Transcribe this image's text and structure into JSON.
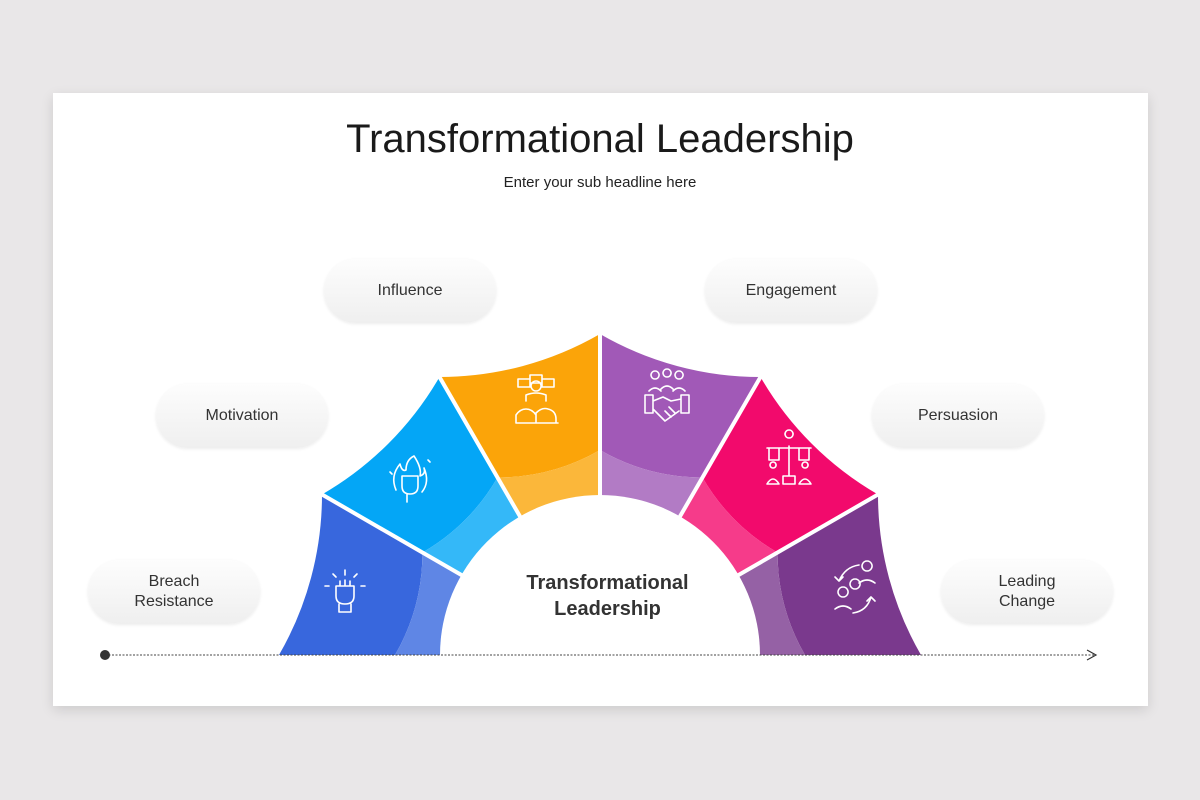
{
  "header": {
    "title": "Transformational Leadership",
    "subtitle": "Enter your sub headline here"
  },
  "center": {
    "line1": "Transformational",
    "line2": "Leadership"
  },
  "segments": [
    {
      "label": "Breach Resistance",
      "color": "#3867dd",
      "light": "#5f86e5",
      "icon": "raised-fist-icon"
    },
    {
      "label": "Motivation",
      "color": "#04a6f6",
      "light": "#34b8f8",
      "icon": "fist-flame-icon"
    },
    {
      "label": "Influence",
      "color": "#fba409",
      "light": "#fbb73a",
      "icon": "team-hearts-icon"
    },
    {
      "label": "Engagement",
      "color": "#a159b7",
      "light": "#b27bc5",
      "icon": "handshake-team-icon"
    },
    {
      "label": "Persuasion",
      "color": "#f20a6c",
      "light": "#f63b8a",
      "icon": "balance-scale-people-icon"
    },
    {
      "label": "Leading Change",
      "color": "#7a398d",
      "light": "#9561a5",
      "icon": "people-gear-cycle-icon"
    }
  ]
}
